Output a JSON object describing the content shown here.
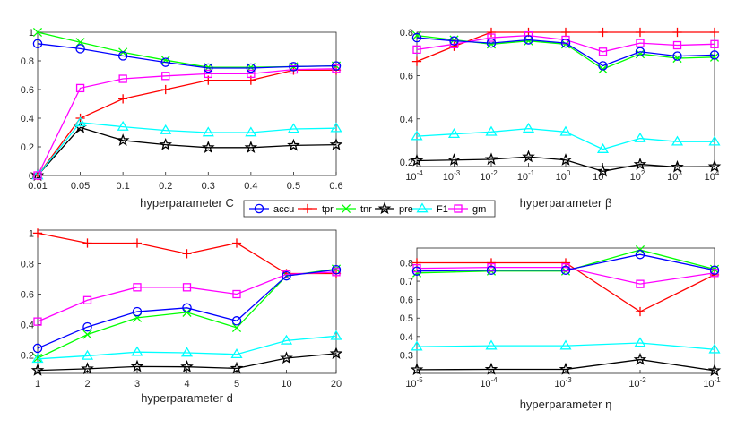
{
  "figure": {
    "type": "multi-panel line chart"
  },
  "legend": {
    "entries": [
      {
        "key": "accu",
        "label": "accu",
        "color": "#0000ff",
        "marker": "circle"
      },
      {
        "key": "tpr",
        "label": "tpr",
        "color": "#ff0000",
        "marker": "plus"
      },
      {
        "key": "tnr",
        "label": "tnr",
        "color": "#00ff00",
        "marker": "x"
      },
      {
        "key": "pre",
        "label": "pre",
        "color": "#000000",
        "marker": "star"
      },
      {
        "key": "F1",
        "label": "F1",
        "color": "#00ffff",
        "marker": "triangle"
      },
      {
        "key": "gm",
        "label": "gm",
        "color": "#ff00ff",
        "marker": "square"
      }
    ]
  },
  "chart_data": [
    {
      "type": "line",
      "id": "C",
      "xlabel": "hyperparameter C",
      "categories": [
        "0.01",
        "0.05",
        "0.1",
        "0.2",
        "0.3",
        "0.4",
        "0.5",
        "0.6"
      ],
      "ylim": [
        0,
        1
      ],
      "yticks": [
        "0",
        "0.2",
        "0.4",
        "0.6",
        "0.8",
        "1"
      ],
      "series": [
        {
          "name": "accu",
          "values": [
            0.92,
            0.885,
            0.835,
            0.79,
            0.75,
            0.75,
            0.76,
            0.765
          ]
        },
        {
          "name": "tpr",
          "values": [
            0.0,
            0.4,
            0.535,
            0.6,
            0.665,
            0.665,
            0.735,
            0.735
          ]
        },
        {
          "name": "tnr",
          "values": [
            1.0,
            0.93,
            0.86,
            0.805,
            0.755,
            0.755,
            0.76,
            0.765
          ]
        },
        {
          "name": "pre",
          "values": [
            0.0,
            0.335,
            0.245,
            0.215,
            0.195,
            0.195,
            0.21,
            0.215
          ]
        },
        {
          "name": "F1",
          "values": [
            0.0,
            0.37,
            0.34,
            0.315,
            0.3,
            0.3,
            0.325,
            0.33
          ]
        },
        {
          "name": "gm",
          "values": [
            0.0,
            0.61,
            0.675,
            0.695,
            0.71,
            0.71,
            0.74,
            0.745
          ]
        }
      ]
    },
    {
      "type": "line",
      "id": "beta",
      "xlabel": "hyperparameter β",
      "categories": [
        "10^-4",
        "10^-3",
        "10^-2",
        "10^-1",
        "10^0",
        "10^1",
        "10^2",
        "10^3",
        "10^4"
      ],
      "xticks": [
        {
          "base": "10",
          "exp": "-4"
        },
        {
          "base": "10",
          "exp": "-3"
        },
        {
          "base": "10",
          "exp": "-2"
        },
        {
          "base": "10",
          "exp": "-1"
        },
        {
          "base": "10",
          "exp": "0"
        },
        {
          "base": "10",
          "exp": "1"
        },
        {
          "base": "10",
          "exp": "2"
        },
        {
          "base": "10",
          "exp": "3"
        },
        {
          "base": "10",
          "exp": "4"
        }
      ],
      "ylim": [
        0.18,
        0.8
      ],
      "yticks": [
        "0.2",
        "0.4",
        "0.6",
        "0.8"
      ],
      "ytick_values": [
        0.2,
        0.4,
        0.6,
        0.8
      ],
      "series": [
        {
          "name": "accu",
          "values": [
            0.775,
            0.76,
            0.75,
            0.765,
            0.75,
            0.645,
            0.71,
            0.69,
            0.695
          ]
        },
        {
          "name": "tpr",
          "values": [
            0.665,
            0.735,
            0.8,
            0.8,
            0.8,
            0.8,
            0.8,
            0.8,
            0.8
          ]
        },
        {
          "name": "tnr",
          "values": [
            0.785,
            0.765,
            0.745,
            0.76,
            0.745,
            0.63,
            0.7,
            0.68,
            0.685
          ]
        },
        {
          "name": "pre",
          "values": [
            0.207,
            0.21,
            0.213,
            0.225,
            0.21,
            0.158,
            0.19,
            0.178,
            0.18
          ]
        },
        {
          "name": "F1",
          "values": [
            0.32,
            0.33,
            0.34,
            0.355,
            0.34,
            0.26,
            0.31,
            0.295,
            0.295
          ]
        },
        {
          "name": "gm",
          "values": [
            0.72,
            0.745,
            0.775,
            0.785,
            0.765,
            0.71,
            0.75,
            0.74,
            0.745
          ]
        }
      ]
    },
    {
      "type": "line",
      "id": "d",
      "xlabel": "hyperparameter d",
      "categories": [
        "1",
        "2",
        "3",
        "4",
        "5",
        "10",
        "20"
      ],
      "ylim": [
        0.08,
        1.02
      ],
      "yticks": [
        "0.2",
        "0.4",
        "0.6",
        "0.8",
        "1"
      ],
      "ytick_values": [
        0.2,
        0.4,
        0.6,
        0.8,
        1.0
      ],
      "series": [
        {
          "name": "accu",
          "values": [
            0.245,
            0.385,
            0.485,
            0.51,
            0.425,
            0.72,
            0.76
          ]
        },
        {
          "name": "tpr",
          "values": [
            1.0,
            0.935,
            0.935,
            0.865,
            0.935,
            0.735,
            0.735
          ]
        },
        {
          "name": "tnr",
          "values": [
            0.18,
            0.335,
            0.445,
            0.48,
            0.38,
            0.72,
            0.765
          ]
        },
        {
          "name": "pre",
          "values": [
            0.1,
            0.11,
            0.125,
            0.123,
            0.113,
            0.18,
            0.21
          ]
        },
        {
          "name": "F1",
          "values": [
            0.175,
            0.195,
            0.22,
            0.215,
            0.205,
            0.295,
            0.325
          ]
        },
        {
          "name": "gm",
          "values": [
            0.42,
            0.56,
            0.645,
            0.645,
            0.6,
            0.73,
            0.745
          ]
        }
      ]
    },
    {
      "type": "line",
      "id": "eta",
      "xlabel": "hyperparameter η",
      "categories": [
        "10^-5",
        "10^-4",
        "10^-3",
        "10^-2",
        "10^-1"
      ],
      "xticks": [
        {
          "base": "10",
          "exp": "-5"
        },
        {
          "base": "10",
          "exp": "-4"
        },
        {
          "base": "10",
          "exp": "-3"
        },
        {
          "base": "10",
          "exp": "-2"
        },
        {
          "base": "10",
          "exp": "-1"
        }
      ],
      "ylim": [
        0.2,
        0.88
      ],
      "yticks": [
        "0.3",
        "0.4",
        "0.5",
        "0.6",
        "0.7",
        "0.8"
      ],
      "ytick_values": [
        0.3,
        0.4,
        0.5,
        0.6,
        0.7,
        0.8
      ],
      "series": [
        {
          "name": "accu",
          "values": [
            0.755,
            0.76,
            0.76,
            0.845,
            0.76
          ]
        },
        {
          "name": "tpr",
          "values": [
            0.8,
            0.8,
            0.8,
            0.535,
            0.735
          ]
        },
        {
          "name": "tnr",
          "values": [
            0.745,
            0.755,
            0.755,
            0.87,
            0.765
          ]
        },
        {
          "name": "pre",
          "values": [
            0.22,
            0.222,
            0.222,
            0.275,
            0.215
          ]
        },
        {
          "name": "F1",
          "values": [
            0.345,
            0.35,
            0.35,
            0.365,
            0.33
          ]
        },
        {
          "name": "gm",
          "values": [
            0.77,
            0.775,
            0.775,
            0.685,
            0.745
          ]
        }
      ]
    }
  ]
}
